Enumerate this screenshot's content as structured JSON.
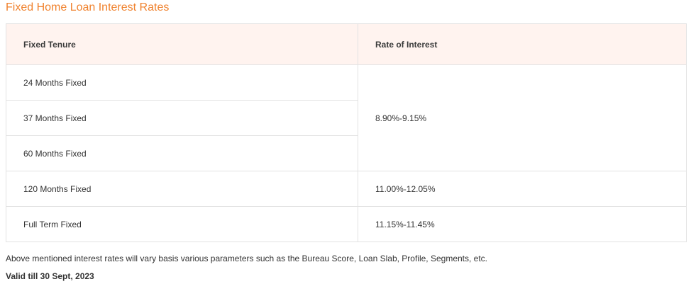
{
  "title": "Fixed Home Loan Interest Rates",
  "table": {
    "headers": [
      "Fixed Tenure",
      "Rate of Interest"
    ],
    "rows": [
      {
        "tenure": "24 Months Fixed"
      },
      {
        "tenure": "37 Months Fixed",
        "rate": "8.90%-9.15%"
      },
      {
        "tenure": "60 Months Fixed"
      },
      {
        "tenure": "120 Months Fixed",
        "rate": "11.00%-12.05%"
      },
      {
        "tenure": "Full Term Fixed",
        "rate": "11.15%-11.45%"
      }
    ]
  },
  "note": "Above mentioned interest rates will vary basis various parameters such as the Bureau Score, Loan Slab, Profile, Segments, etc.",
  "validity": "Valid till 30 Sept, 2023",
  "colors": {
    "title": "#f0822e",
    "header_bg": "#fff3ef",
    "border": "#e2e2e2",
    "text": "#333333"
  }
}
